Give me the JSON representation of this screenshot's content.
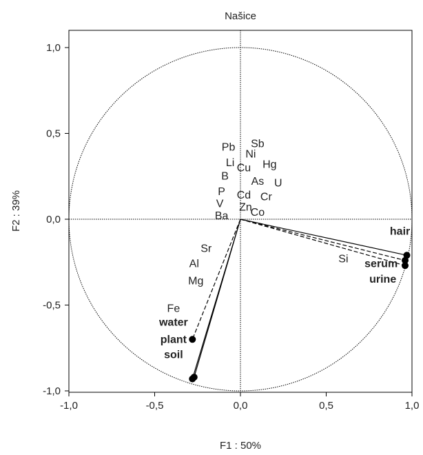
{
  "chart_data": {
    "type": "scatter",
    "title": "Našice",
    "xlabel": "F1 : 50%",
    "ylabel": "F2 : 39%",
    "xlim": [
      -1.1,
      1.1
    ],
    "ylim": [
      -1.1,
      1.1
    ],
    "xticks": [
      "-1,0",
      "-0,5",
      "0,0",
      "0,5",
      "1,0"
    ],
    "yticks": [
      "1,0",
      "0,5",
      "0,0",
      "-0,5",
      "-1,0"
    ],
    "xtick_values": [
      -1.0,
      -0.5,
      0.0,
      0.5,
      1.0
    ],
    "ytick_values": [
      1.0,
      0.5,
      0.0,
      -0.5,
      -1.0
    ],
    "grid": false,
    "unit_circle": true,
    "variables": [
      {
        "label": "Pb",
        "x": -0.07,
        "y": 0.4
      },
      {
        "label": "Sb",
        "x": 0.1,
        "y": 0.42
      },
      {
        "label": "Ni",
        "x": 0.06,
        "y": 0.36
      },
      {
        "label": "Li",
        "x": -0.06,
        "y": 0.31
      },
      {
        "label": "Cu",
        "x": 0.02,
        "y": 0.28
      },
      {
        "label": "Hg",
        "x": 0.17,
        "y": 0.3
      },
      {
        "label": "B",
        "x": -0.09,
        "y": 0.23
      },
      {
        "label": "As",
        "x": 0.1,
        "y": 0.2
      },
      {
        "label": "U",
        "x": 0.22,
        "y": 0.19
      },
      {
        "label": "P",
        "x": -0.11,
        "y": 0.14
      },
      {
        "label": "Cd",
        "x": 0.02,
        "y": 0.12
      },
      {
        "label": "Cr",
        "x": 0.15,
        "y": 0.11
      },
      {
        "label": "V",
        "x": -0.12,
        "y": 0.07
      },
      {
        "label": "Zn",
        "x": 0.03,
        "y": 0.05
      },
      {
        "label": "Co",
        "x": 0.1,
        "y": 0.02
      },
      {
        "label": "Ba",
        "x": -0.11,
        "y": 0.0
      },
      {
        "label": "Sr",
        "x": -0.2,
        "y": -0.19
      },
      {
        "label": "Al",
        "x": -0.27,
        "y": -0.28
      },
      {
        "label": "Si",
        "x": 0.6,
        "y": -0.25
      },
      {
        "label": "Mg",
        "x": -0.26,
        "y": -0.38
      },
      {
        "label": "Fe",
        "x": -0.39,
        "y": -0.54
      }
    ],
    "sample_labels": [
      {
        "label": "hair",
        "x": 0.93,
        "y": -0.09
      },
      {
        "label": "serum",
        "x": 0.82,
        "y": -0.28
      },
      {
        "label": "urine",
        "x": 0.83,
        "y": -0.37
      },
      {
        "label": "water",
        "x": -0.39,
        "y": -0.62
      },
      {
        "label": "plant",
        "x": -0.39,
        "y": -0.72
      },
      {
        "label": "soil",
        "x": -0.39,
        "y": -0.81
      }
    ],
    "vectors": [
      {
        "x": 0.97,
        "y": -0.21,
        "style": "solid"
      },
      {
        "x": 0.96,
        "y": -0.24,
        "style": "dashed"
      },
      {
        "x": 0.96,
        "y": -0.27,
        "style": "dashed"
      },
      {
        "x": -0.28,
        "y": -0.7,
        "style": "dashed"
      },
      {
        "x": -0.28,
        "y": -0.93,
        "style": "solid"
      },
      {
        "x": -0.27,
        "y": -0.92,
        "style": "solid"
      }
    ]
  }
}
